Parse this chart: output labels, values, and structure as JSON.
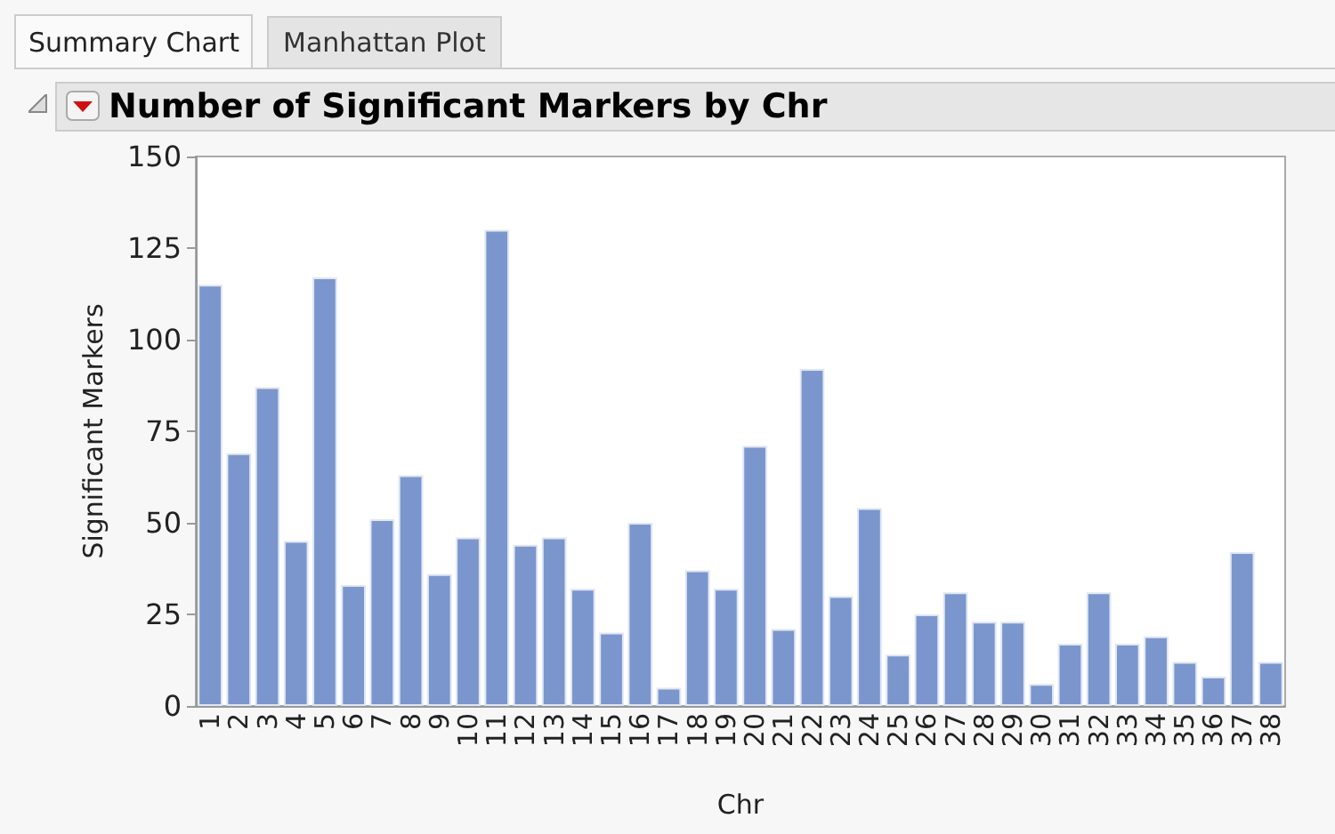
{
  "chart_data": {
    "type": "bar",
    "title": "Number of Significant Markers by Chr",
    "xlabel": "Chr",
    "ylabel": "Significant Markers",
    "annotations": [
      "Summary Chart",
      "Manhattan Plot"
    ],
    "categories": [
      "1",
      "2",
      "3",
      "4",
      "5",
      "6",
      "7",
      "8",
      "9",
      "10",
      "11",
      "12",
      "13",
      "14",
      "15",
      "16",
      "17",
      "18",
      "19",
      "20",
      "21",
      "22",
      "23",
      "24",
      "25",
      "26",
      "27",
      "28",
      "29",
      "30",
      "31",
      "32",
      "33",
      "34",
      "35",
      "36",
      "37",
      "38"
    ],
    "values": [
      115,
      69,
      87,
      45,
      117,
      33,
      51,
      63,
      36,
      46,
      130,
      44,
      46,
      32,
      20,
      50,
      5,
      37,
      32,
      71,
      21,
      92,
      30,
      54,
      14,
      25,
      31,
      23,
      23,
      6,
      17,
      31,
      17,
      19,
      12,
      8,
      42,
      12
    ],
    "color": "#7b96cc",
    "ylim": [
      0,
      150
    ],
    "yticks": [
      0,
      25,
      50,
      75,
      100,
      125,
      150
    ],
    "grid": false
  }
}
